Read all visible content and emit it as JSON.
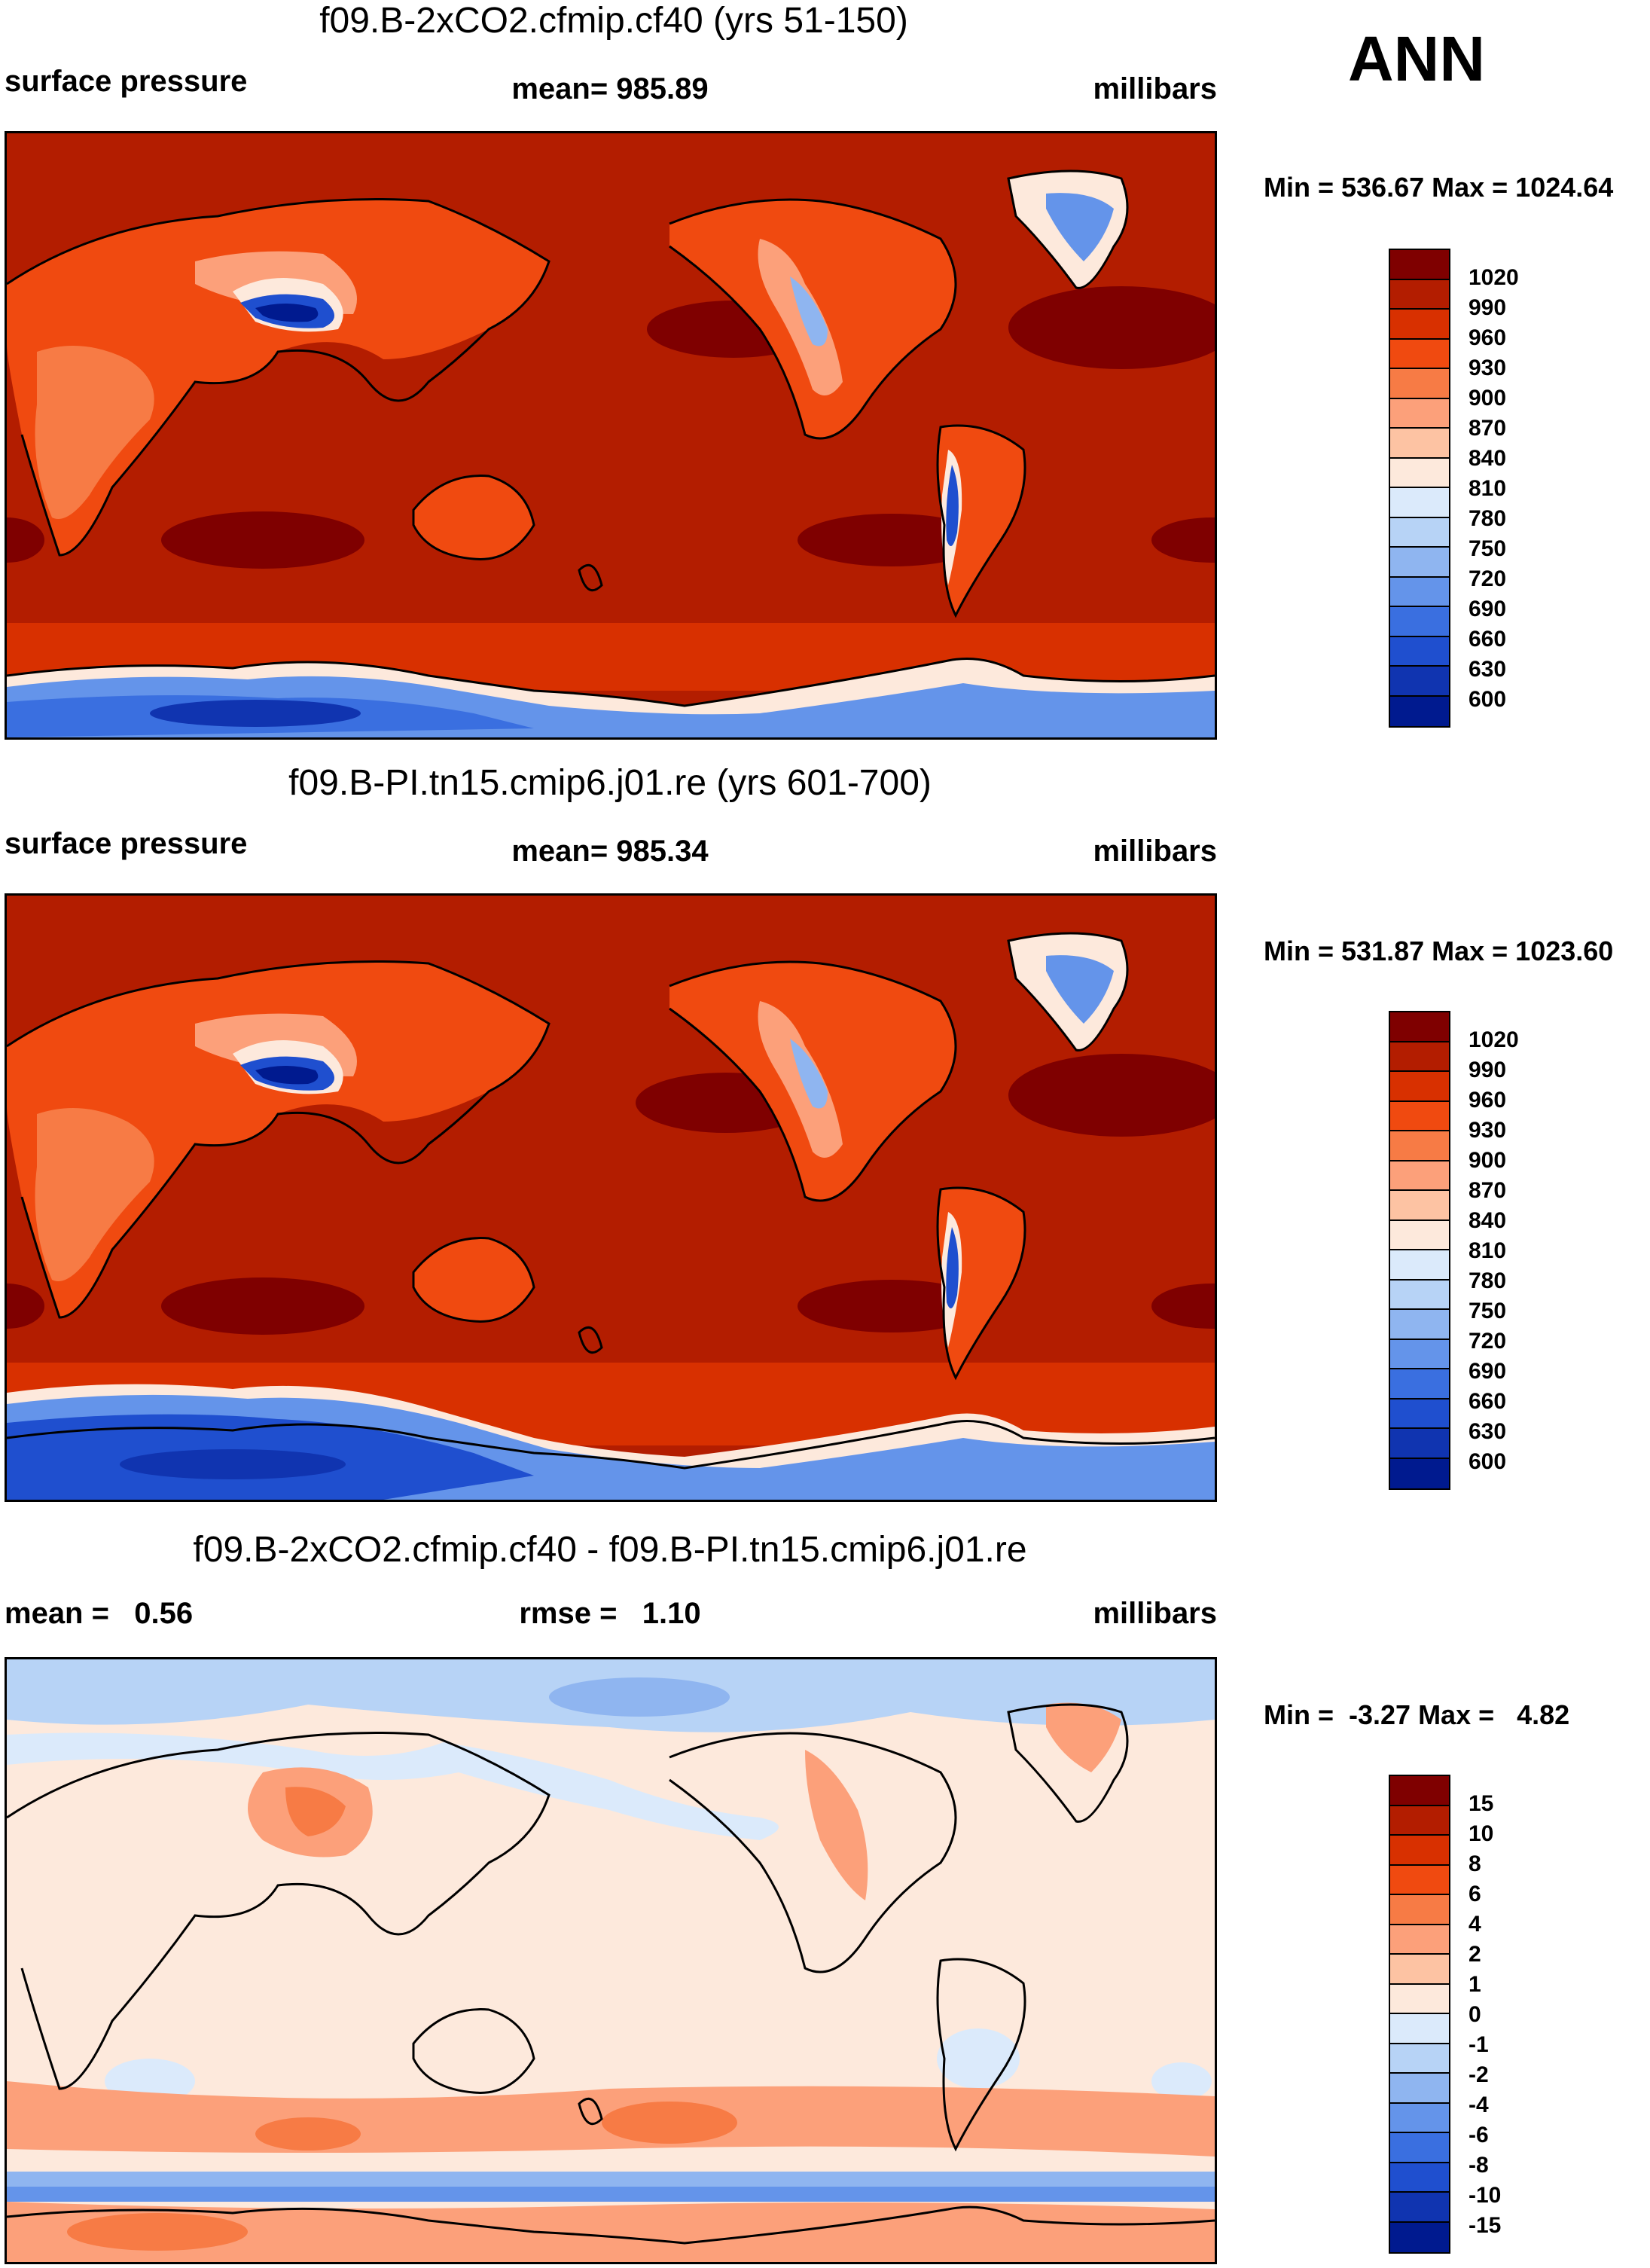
{
  "season": "ANN",
  "panels": [
    {
      "title": "f09.B-2xCO2.cfmip.cf40 (yrs 51-150)",
      "left_label": "surface pressure",
      "center_label": "mean= 985.89",
      "right_label": "millibars",
      "minmax": "Min = 536.67 Max = 1024.64",
      "colorbar_labels": [
        "1020",
        "990",
        "960",
        "930",
        "900",
        "870",
        "840",
        "810",
        "780",
        "750",
        "720",
        "690",
        "660",
        "630",
        "600"
      ],
      "colorbar_colors": [
        "#7f0000",
        "#b31d00",
        "#d83000",
        "#f04a10",
        "#f77b45",
        "#fca07a",
        "#fdc3a3",
        "#fde9dc",
        "#dbeafb",
        "#b7d3f6",
        "#8fb5f0",
        "#6494ea",
        "#3a6fe0",
        "#1f4fcf",
        "#1034b0",
        "#001a8f"
      ]
    },
    {
      "title": "f09.B-PI.tn15.cmip6.j01.re (yrs 601-700)",
      "left_label": "surface pressure",
      "center_label": "mean= 985.34",
      "right_label": "millibars",
      "minmax": "Min = 531.87 Max = 1023.60",
      "colorbar_labels": [
        "1020",
        "990",
        "960",
        "930",
        "900",
        "870",
        "840",
        "810",
        "780",
        "750",
        "720",
        "690",
        "660",
        "630",
        "600"
      ],
      "colorbar_colors": [
        "#7f0000",
        "#b31d00",
        "#d83000",
        "#f04a10",
        "#f77b45",
        "#fca07a",
        "#fdc3a3",
        "#fde9dc",
        "#dbeafb",
        "#b7d3f6",
        "#8fb5f0",
        "#6494ea",
        "#3a6fe0",
        "#1f4fcf",
        "#1034b0",
        "#001a8f"
      ]
    },
    {
      "title": "f09.B-2xCO2.cfmip.cf40 - f09.B-PI.tn15.cmip6.j01.re",
      "left_label": "mean =   0.56",
      "center_label": "rmse =   1.10",
      "right_label": "millibars",
      "minmax": "Min =  -3.27 Max =   4.82",
      "colorbar_labels": [
        "15",
        "10",
        "8",
        "6",
        "4",
        "2",
        "1",
        "0",
        "-1",
        "-2",
        "-4",
        "-6",
        "-8",
        "-10",
        "-15"
      ],
      "colorbar_colors": [
        "#7f0000",
        "#b31d00",
        "#d83000",
        "#f04a10",
        "#f77b45",
        "#fca07a",
        "#fdc3a3",
        "#fde9dc",
        "#dbeafb",
        "#b7d3f6",
        "#8fb5f0",
        "#6494ea",
        "#3a6fe0",
        "#1f4fcf",
        "#1034b0",
        "#001a8f"
      ]
    }
  ]
}
